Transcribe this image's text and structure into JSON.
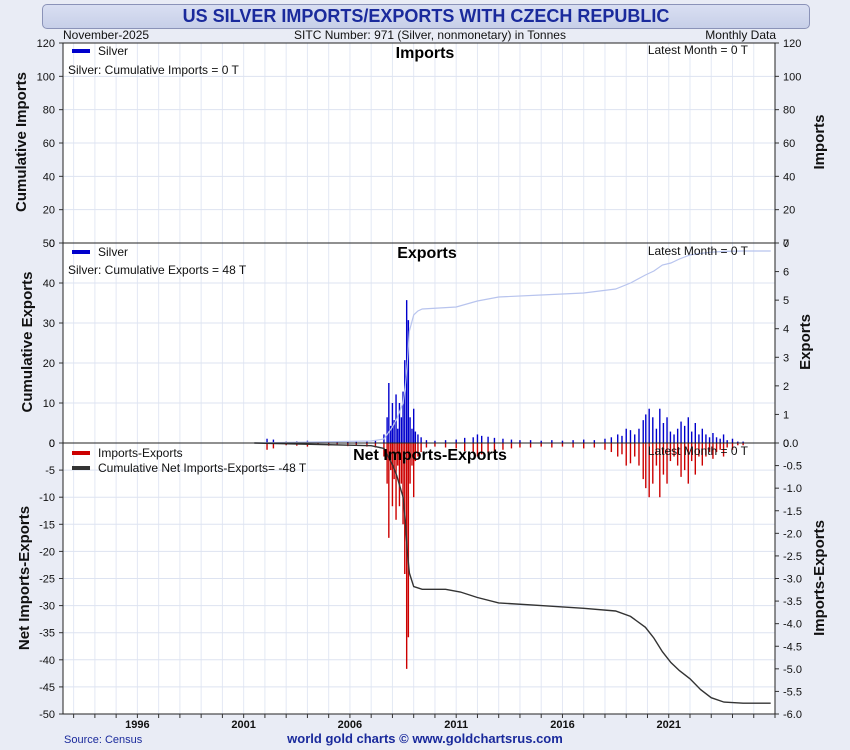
{
  "title": "US SILVER IMPORTS/EXPORTS WITH CZECH REPUBLIC",
  "header": {
    "date": "November-2025",
    "subtitle": "SITC Number: 971 (Silver, nonmonetary) in Tonnes",
    "frequency": "Monthly Data"
  },
  "footer": {
    "source": "Source: Census",
    "credit": "world gold charts © www.goldchartsrus.com"
  },
  "colors": {
    "silver": "#0000cc",
    "net": "#cc0000",
    "cumulative_net": "#333333",
    "cumulative_exports": "#b8c4ee",
    "text": "#1a2a9c"
  },
  "chart_data": [
    {
      "type": "bar",
      "title": "Imports",
      "legend": [
        "Silver"
      ],
      "annotation": "Silver: Cumulative Imports = 0 T",
      "latest": "Latest Month = 0 T",
      "ylabel_left": "Cumulative Imports",
      "ylabel_right": "Imports",
      "left_ylim": [
        0,
        120
      ],
      "left_ticks": [
        "0",
        "20",
        "40",
        "60",
        "80",
        "100",
        "120"
      ],
      "right_ylim": [
        0,
        120
      ],
      "right_ticks": [
        "0",
        "20",
        "40",
        "60",
        "80",
        "100",
        "120"
      ],
      "series": [
        {
          "name": "Silver",
          "values": []
        }
      ]
    },
    {
      "type": "bar",
      "title": "Exports",
      "legend": [
        "Silver"
      ],
      "annotation": "Silver: Cumulative Exports = 48 T",
      "latest": "Latest Month = 0 T",
      "ylabel_left": "Cumulative Exports",
      "ylabel_right": "Exports",
      "left_ylim": [
        0,
        50
      ],
      "left_ticks": [
        "0",
        "10",
        "20",
        "30",
        "40",
        "50"
      ],
      "right_ylim": [
        0,
        7
      ],
      "right_ticks": [
        "0",
        "1",
        "2",
        "3",
        "4",
        "5",
        "6",
        "7"
      ],
      "monthly_bars": [
        [
          2002.1,
          0.15
        ],
        [
          2002.4,
          0.12
        ],
        [
          2003.0,
          0.05
        ],
        [
          2003.5,
          0.06
        ],
        [
          2004.0,
          0.08
        ],
        [
          2004.5,
          0.04
        ],
        [
          2005.0,
          0.06
        ],
        [
          2005.4,
          0.05
        ],
        [
          2005.9,
          0.07
        ],
        [
          2006.3,
          0.06
        ],
        [
          2006.8,
          0.08
        ],
        [
          2007.2,
          0.1
        ],
        [
          2007.6,
          0.3
        ],
        [
          2007.75,
          0.9
        ],
        [
          2007.83,
          2.1
        ],
        [
          2007.92,
          0.6
        ],
        [
          2008.0,
          1.4
        ],
        [
          2008.08,
          0.8
        ],
        [
          2008.17,
          1.7
        ],
        [
          2008.25,
          0.5
        ],
        [
          2008.33,
          1.4
        ],
        [
          2008.42,
          0.9
        ],
        [
          2008.5,
          1.8
        ],
        [
          2008.58,
          2.9
        ],
        [
          2008.67,
          5.0
        ],
        [
          2008.75,
          4.3
        ],
        [
          2008.83,
          0.9
        ],
        [
          2008.92,
          0.5
        ],
        [
          2009.0,
          1.2
        ],
        [
          2009.08,
          0.4
        ],
        [
          2009.2,
          0.3
        ],
        [
          2009.35,
          0.2
        ],
        [
          2009.6,
          0.1
        ],
        [
          2010.0,
          0.08
        ],
        [
          2010.5,
          0.1
        ],
        [
          2011.0,
          0.12
        ],
        [
          2011.4,
          0.18
        ],
        [
          2011.8,
          0.2
        ],
        [
          2012.0,
          0.3
        ],
        [
          2012.2,
          0.25
        ],
        [
          2012.5,
          0.22
        ],
        [
          2012.8,
          0.18
        ],
        [
          2013.2,
          0.15
        ],
        [
          2013.6,
          0.12
        ],
        [
          2014.0,
          0.1
        ],
        [
          2014.5,
          0.1
        ],
        [
          2015.0,
          0.08
        ],
        [
          2015.5,
          0.1
        ],
        [
          2016.0,
          0.08
        ],
        [
          2016.5,
          0.1
        ],
        [
          2017.0,
          0.12
        ],
        [
          2017.5,
          0.1
        ],
        [
          2018.0,
          0.15
        ],
        [
          2018.3,
          0.2
        ],
        [
          2018.6,
          0.3
        ],
        [
          2018.8,
          0.25
        ],
        [
          2019.0,
          0.5
        ],
        [
          2019.2,
          0.45
        ],
        [
          2019.4,
          0.3
        ],
        [
          2019.6,
          0.5
        ],
        [
          2019.8,
          0.8
        ],
        [
          2019.92,
          1.0
        ],
        [
          2020.08,
          1.2
        ],
        [
          2020.25,
          0.9
        ],
        [
          2020.42,
          0.5
        ],
        [
          2020.58,
          1.2
        ],
        [
          2020.75,
          0.7
        ],
        [
          2020.92,
          0.9
        ],
        [
          2021.08,
          0.4
        ],
        [
          2021.25,
          0.3
        ],
        [
          2021.42,
          0.5
        ],
        [
          2021.58,
          0.75
        ],
        [
          2021.75,
          0.6
        ],
        [
          2021.92,
          0.9
        ],
        [
          2022.08,
          0.4
        ],
        [
          2022.25,
          0.7
        ],
        [
          2022.42,
          0.3
        ],
        [
          2022.58,
          0.5
        ],
        [
          2022.75,
          0.3
        ],
        [
          2022.92,
          0.2
        ],
        [
          2023.08,
          0.35
        ],
        [
          2023.25,
          0.2
        ],
        [
          2023.42,
          0.15
        ],
        [
          2023.58,
          0.3
        ],
        [
          2023.75,
          0.1
        ],
        [
          2024.0,
          0.15
        ],
        [
          2024.25,
          0.05
        ],
        [
          2024.5,
          0.05
        ]
      ],
      "cumulative_line": [
        [
          2001.5,
          0
        ],
        [
          2007.0,
          0.5
        ],
        [
          2007.6,
          1.0
        ],
        [
          2008.0,
          4.0
        ],
        [
          2008.2,
          6.0
        ],
        [
          2008.5,
          10.0
        ],
        [
          2008.6,
          14.0
        ],
        [
          2008.7,
          20.0
        ],
        [
          2008.8,
          28.0
        ],
        [
          2009.0,
          32.0
        ],
        [
          2009.2,
          33.0
        ],
        [
          2009.4,
          33.5
        ],
        [
          2011.0,
          34.0
        ],
        [
          2012.0,
          35.5
        ],
        [
          2013.0,
          36.5
        ],
        [
          2015.0,
          37.0
        ],
        [
          2017.0,
          37.5
        ],
        [
          2018.5,
          38.5
        ],
        [
          2019.2,
          40.0
        ],
        [
          2019.9,
          42.0
        ],
        [
          2020.3,
          43.0
        ],
        [
          2020.7,
          44.5
        ],
        [
          2021.1,
          45.0
        ],
        [
          2021.5,
          46.0
        ],
        [
          2022.0,
          47.0
        ],
        [
          2022.5,
          47.4
        ],
        [
          2023.0,
          47.7
        ],
        [
          2023.6,
          47.9
        ],
        [
          2024.5,
          48.0
        ],
        [
          2025.8,
          48.0
        ]
      ]
    },
    {
      "type": "bar",
      "title": "Net Imports-Exports",
      "legend": [
        "Imports-Exports",
        "Cumulative Net Imports-Exports= -48 T"
      ],
      "latest": "Latest Month = 0 T",
      "ylabel_left": "Net Imports-Exports",
      "ylabel_right": "Imports-Exports",
      "left_ylim": [
        -50,
        0
      ],
      "left_ticks": [
        "-50",
        "-45",
        "-40",
        "-35",
        "-30",
        "-25",
        "-20",
        "-15",
        "-10",
        "-5",
        "0"
      ],
      "right_ylim": [
        -6,
        0
      ],
      "right_ticks": [
        "-6.0",
        "-5.5",
        "-5.0",
        "-4.5",
        "-4.0",
        "-3.5",
        "-3.0",
        "-2.5",
        "-2.0",
        "-1.5",
        "-1.0",
        "-0.5",
        "0.0"
      ],
      "cumulative_line": [
        [
          2001.5,
          0
        ],
        [
          2007.0,
          -0.5
        ],
        [
          2007.6,
          -1.0
        ],
        [
          2008.0,
          -4.0
        ],
        [
          2008.2,
          -6.0
        ],
        [
          2008.5,
          -10.0
        ],
        [
          2008.6,
          -14.0
        ],
        [
          2008.7,
          -20.0
        ],
        [
          2008.8,
          -24.0
        ],
        [
          2009.0,
          -26.5
        ],
        [
          2009.4,
          -27.0
        ],
        [
          2010.5,
          -27.0
        ],
        [
          2011.2,
          -27.5
        ],
        [
          2012.0,
          -28.5
        ],
        [
          2013.0,
          -29.5
        ],
        [
          2015.0,
          -30.0
        ],
        [
          2017.0,
          -30.5
        ],
        [
          2018.5,
          -31.0
        ],
        [
          2019.2,
          -32.0
        ],
        [
          2019.9,
          -34.0
        ],
        [
          2020.3,
          -36.0
        ],
        [
          2020.7,
          -38.5
        ],
        [
          2021.1,
          -40.5
        ],
        [
          2021.5,
          -42.0
        ],
        [
          2022.0,
          -43.5
        ],
        [
          2022.5,
          -45.5
        ],
        [
          2023.0,
          -47.0
        ],
        [
          2023.6,
          -47.8
        ],
        [
          2024.5,
          -48.0
        ],
        [
          2025.8,
          -48.0
        ]
      ]
    }
  ],
  "x_axis": {
    "xlim": [
      1992.5,
      2026.0
    ],
    "ticks": [
      1996,
      2001,
      2006,
      2011,
      2016,
      2021
    ],
    "tick_labels": [
      "1996",
      "2001",
      "2006",
      "2011",
      "2016",
      "2021"
    ]
  }
}
